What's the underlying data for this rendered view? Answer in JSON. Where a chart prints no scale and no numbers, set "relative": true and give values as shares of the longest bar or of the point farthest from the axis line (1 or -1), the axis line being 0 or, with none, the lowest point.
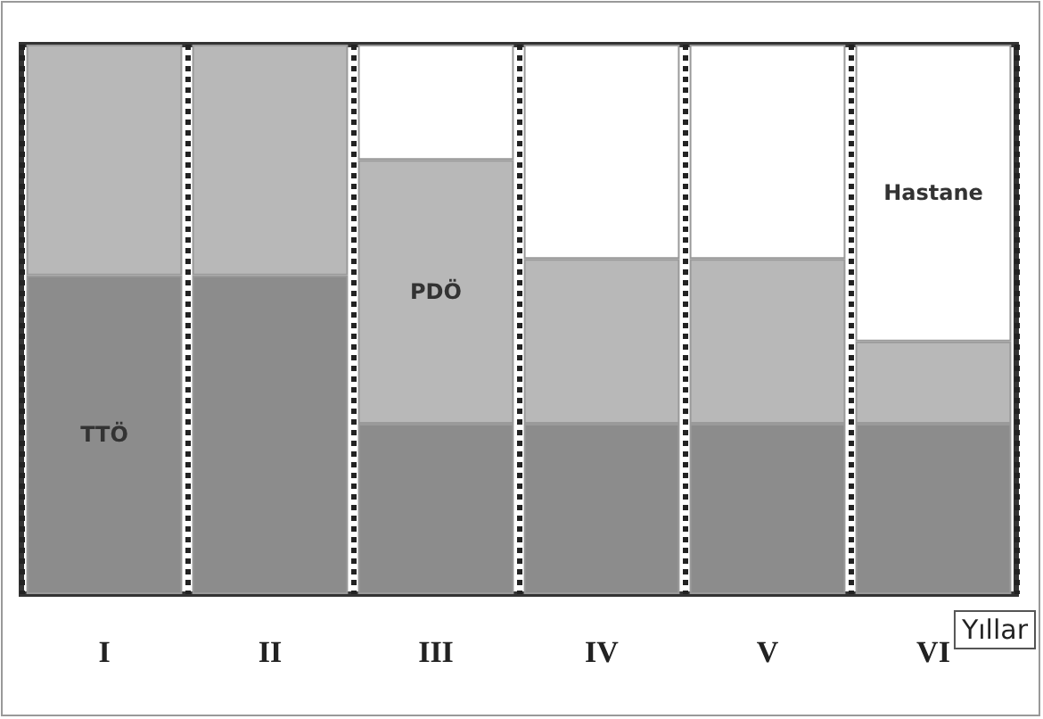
{
  "chart_data": {
    "type": "bar",
    "stacked": true,
    "relative": true,
    "xlabel": "Yıllar",
    "categories": [
      "I",
      "II",
      "III",
      "IV",
      "V",
      "VI"
    ],
    "series": [
      {
        "name": "TTÖ",
        "color": "#8c8c8c",
        "values": [
          0.58,
          0.58,
          0.31,
          0.31,
          0.31,
          0.31
        ]
      },
      {
        "name": "PDÖ",
        "color": "#b8b8b8",
        "values": [
          0.42,
          0.42,
          0.48,
          0.3,
          0.3,
          0.15
        ]
      },
      {
        "name": "Hastane",
        "color": "#ffffff",
        "values": [
          0,
          0,
          0.21,
          0.39,
          0.39,
          0.54
        ]
      }
    ],
    "grid": "x",
    "legend": false
  }
}
